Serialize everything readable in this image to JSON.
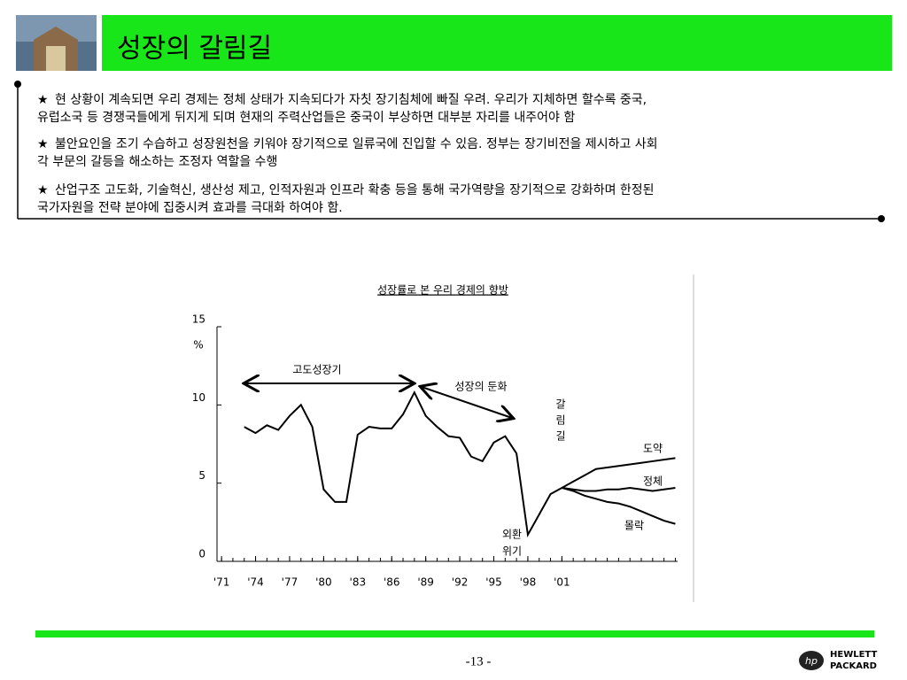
{
  "header": {
    "title": "성장의 갈림길"
  },
  "bullets": [
    [
      "현 상황이 계속되면 우리 경제는 정체 상태가 지속되다가 자칫 장기침체에 빠질 우려.  우리가 지체하면 할수록 중국,",
      "유럽소국 등 경쟁국들에게 뒤지게 되며 현재의 주력산업들은 중국이 부상하면 대부분 자리를 내주어야 함"
    ],
    [
      "불안요인을 조기 수습하고 성장원천을 키워야 장기적으로 일류국에 진입할 수 있음. 정부는 장기비전을 제시하고 사회",
      "각 부문의 갈등을 해소하는 조정자 역할을 수행"
    ],
    [
      "산업구조 고도화, 기술혁신, 생산성 제고, 인적자원과 인프라 확충 등을 통해 국가역량을 장기적으로 강화하며 한정된",
      "국가자원을 전략 분야에 집중시켜 효과를 극대화 하여야 함."
    ]
  ],
  "chart_data": {
    "type": "line",
    "title": "성장률로 본 우리 경제의 향방",
    "ylabel": "%",
    "x": [
      1973,
      1974,
      1975,
      1976,
      1977,
      1978,
      1979,
      1980,
      1981,
      1982,
      1983,
      1984,
      1985,
      1986,
      1987,
      1988,
      1989,
      1990,
      1991,
      1992,
      1993,
      1994,
      1995,
      1996,
      1997,
      1998,
      1999,
      2000,
      2001,
      2002,
      2003,
      2004,
      2005,
      2006,
      2007,
      2008,
      2009,
      2010,
      2011
    ],
    "series": [
      {
        "color": "#000000",
        "values": [
          8.6,
          8.2,
          8.7,
          8.4,
          9.3,
          10.0,
          8.6,
          4.6,
          3.8,
          3.8,
          8.1,
          8.6,
          8.5,
          8.5,
          9.4,
          10.8,
          9.3,
          8.6,
          8.0,
          7.9,
          6.7,
          6.4,
          7.6,
          8.0,
          6.9,
          1.7,
          3.0,
          4.3,
          4.7,
          null,
          null,
          null,
          null,
          null,
          null,
          null,
          null,
          null,
          null
        ]
      },
      {
        "name": "도약",
        "color": "#000000",
        "values": [
          null,
          null,
          null,
          null,
          null,
          null,
          null,
          null,
          null,
          null,
          null,
          null,
          null,
          null,
          null,
          null,
          null,
          null,
          null,
          null,
          null,
          null,
          null,
          null,
          null,
          null,
          null,
          null,
          4.7,
          5.1,
          5.5,
          5.9,
          6.0,
          6.1,
          6.2,
          6.3,
          6.4,
          6.5,
          6.6
        ]
      },
      {
        "name": "정체",
        "color": "#000000",
        "values": [
          null,
          null,
          null,
          null,
          null,
          null,
          null,
          null,
          null,
          null,
          null,
          null,
          null,
          null,
          null,
          null,
          null,
          null,
          null,
          null,
          null,
          null,
          null,
          null,
          null,
          null,
          null,
          null,
          4.7,
          4.6,
          4.5,
          4.5,
          4.6,
          4.6,
          4.7,
          4.6,
          4.5,
          4.6,
          4.7
        ]
      },
      {
        "name": "몰락",
        "color": "#000000",
        "values": [
          null,
          null,
          null,
          null,
          null,
          null,
          null,
          null,
          null,
          null,
          null,
          null,
          null,
          null,
          null,
          null,
          null,
          null,
          null,
          null,
          null,
          null,
          null,
          null,
          null,
          null,
          null,
          null,
          4.7,
          4.5,
          4.2,
          4.0,
          3.8,
          3.7,
          3.5,
          3.2,
          2.9,
          2.6,
          2.4
        ]
      }
    ],
    "xlim": [
      1970.6,
      2011.2
    ],
    "xticks": [
      {
        "value": 1971,
        "label": "'71"
      },
      {
        "value": 1974,
        "label": "'74"
      },
      {
        "value": 1977,
        "label": "'77"
      },
      {
        "value": 1980,
        "label": "'80"
      },
      {
        "value": 1983,
        "label": "'83"
      },
      {
        "value": 1986,
        "label": "'86"
      },
      {
        "value": 1989,
        "label": "'89"
      },
      {
        "value": 1992,
        "label": "'92"
      },
      {
        "value": 1995,
        "label": "'95"
      },
      {
        "value": 1998,
        "label": "'98"
      },
      {
        "value": 2001,
        "label": "'01"
      }
    ],
    "ylim": [
      0,
      15
    ],
    "yticks": [
      0,
      5,
      10,
      15
    ],
    "annotations": {
      "high_growth": "고도성장기",
      "slowdown": "성장의 둔화",
      "crossroads": "갈림길",
      "crisis": [
        "외환",
        "위기"
      ]
    }
  },
  "footer": {
    "page": "-13 -",
    "logo": [
      "HEWLETT",
      "PACKARD"
    ],
    "logo_mark": "hp"
  }
}
